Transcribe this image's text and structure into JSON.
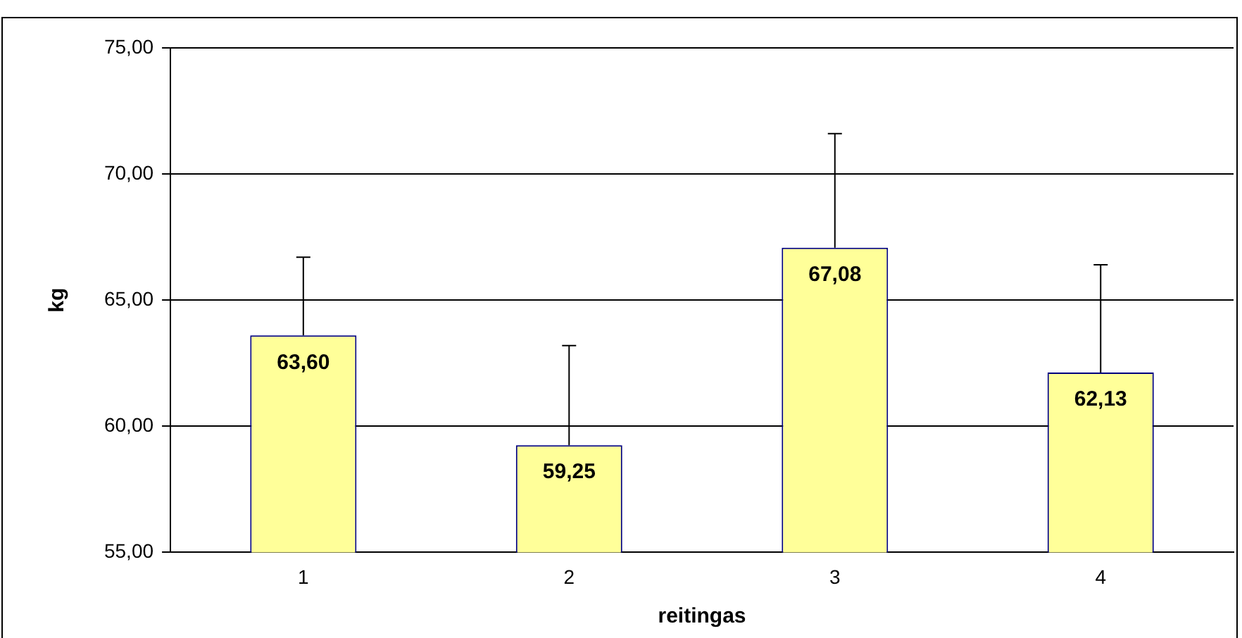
{
  "chart_data": {
    "type": "bar",
    "xlabel": "reitingas",
    "ylabel": "kg",
    "categories": [
      "1",
      "2",
      "3",
      "4"
    ],
    "values": [
      63.6,
      59.25,
      67.08,
      62.13
    ],
    "value_labels": [
      "63,60",
      "59,25",
      "67,08",
      "62,13"
    ],
    "errors": [
      [
        63.6,
        66.7
      ],
      [
        59.25,
        63.2
      ],
      [
        67.08,
        71.6
      ],
      [
        62.13,
        66.4
      ]
    ],
    "color": "#ffff99",
    "ylim": [
      55,
      75
    ],
    "yticks": [
      {
        "value": 55,
        "label": "55,00"
      },
      {
        "value": 60,
        "label": "60,00"
      },
      {
        "value": 65,
        "label": "65,00"
      },
      {
        "value": 70,
        "label": "70,00"
      },
      {
        "value": 75,
        "label": "75,00"
      }
    ],
    "grid": "y",
    "legend": false
  }
}
